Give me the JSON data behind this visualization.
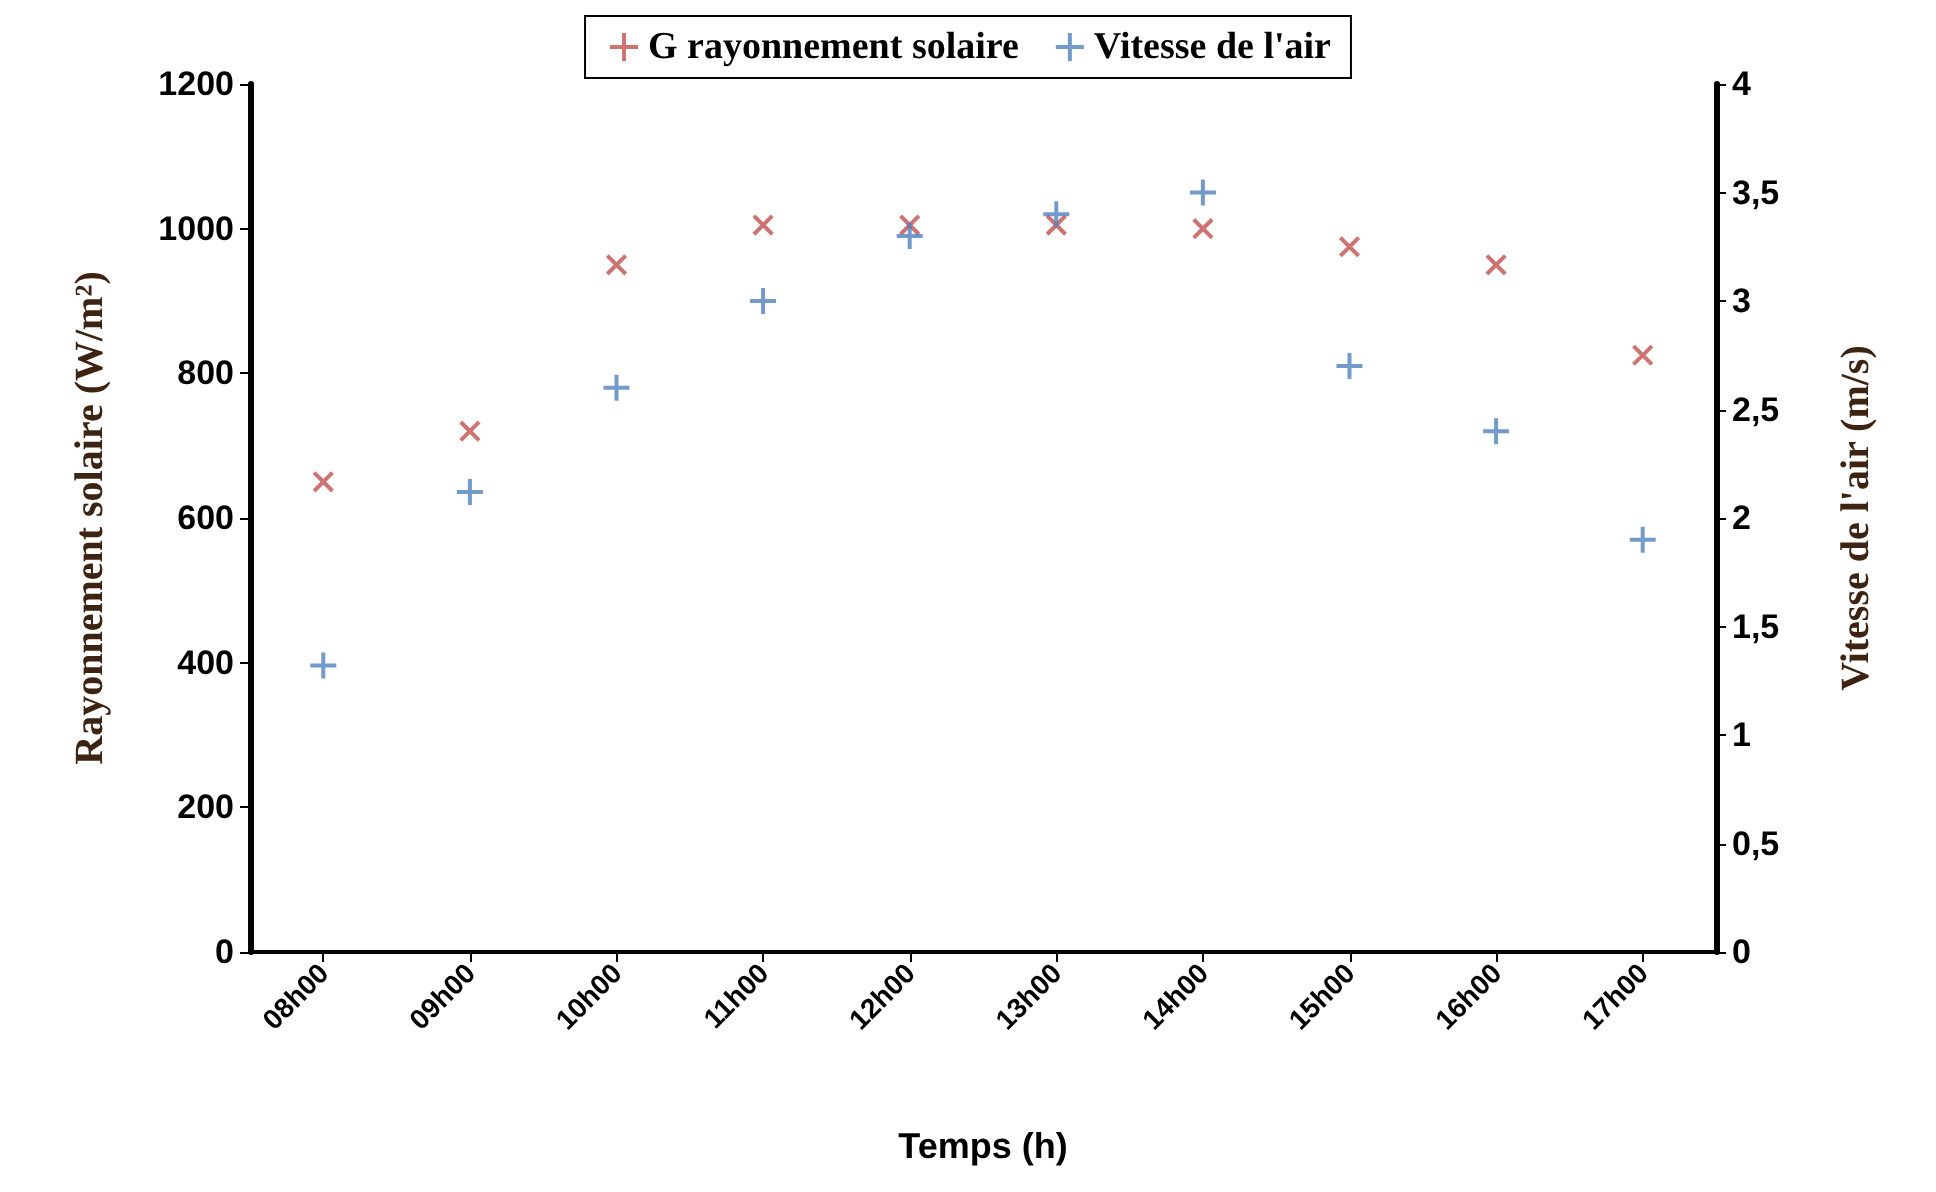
{
  "chart_data": {
    "type": "scatter",
    "xlabel": "Temps (h)",
    "ylabel": "Rayonnement solaire (W/m²)",
    "y2label": "Vitesse de l'air (m/s)",
    "categories": [
      "08h00",
      "09h00",
      "10h00",
      "11h00",
      "12h00",
      "13h00",
      "14h00",
      "15h00",
      "16h00",
      "17h00"
    ],
    "series": [
      {
        "name": "G rayonnement solaire",
        "color": "#c0504d",
        "values": [
          650,
          720,
          950,
          1005,
          1005,
          1005,
          1000,
          975,
          950,
          825
        ]
      },
      {
        "name": "Vitesse de l'air",
        "color": "#4f81bd",
        "axis": "y2",
        "values": [
          1.32,
          2.12,
          2.6,
          3.0,
          3.3,
          3.4,
          3.5,
          2.7,
          2.4,
          1.9
        ]
      }
    ],
    "ylim": [
      0,
      1200
    ],
    "yticks": [
      0,
      200,
      400,
      600,
      800,
      1000,
      1200
    ],
    "y2lim": [
      0,
      4
    ],
    "y2ticks": [
      0,
      {
        "value": 0.5,
        "label": "0,5"
      },
      1,
      {
        "value": 1.5,
        "label": "1,5"
      },
      2,
      {
        "value": 2.5,
        "label": "2,5"
      },
      3,
      {
        "value": 3.5,
        "label": "3,5"
      },
      4
    ],
    "marker": "cross",
    "grid": false,
    "legend": "top"
  }
}
